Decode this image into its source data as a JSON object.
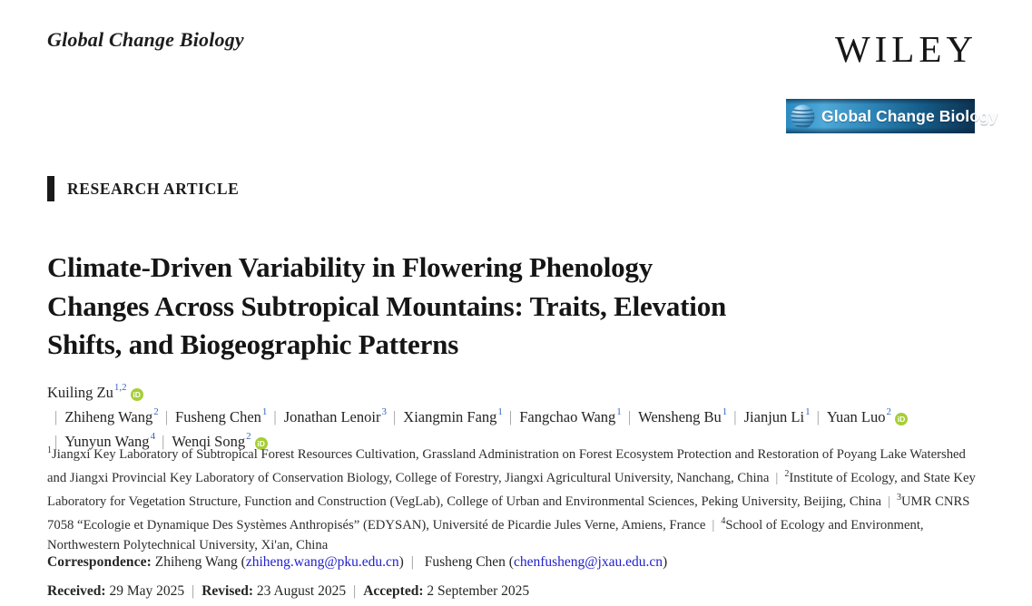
{
  "separator": "|",
  "header": {
    "journal_name": "Global Change Biology",
    "publisher": "WILEY",
    "banner": {
      "label": "Global Change Biology",
      "icon": "globe-icon",
      "gradient_left": "#2b8ac1",
      "gradient_right": "#0d3150",
      "text_color": "#ffffff"
    }
  },
  "article": {
    "kicker": "RESEARCH ARTICLE",
    "title": "Climate-Driven Variability in Flowering Phenology Changes Across Subtropical Mountains: Traits, Elevation Shifts, and Biogeographic Patterns",
    "title_lines": [
      "Climate-Driven Variability in Flowering Phenology",
      "Changes Across Subtropical Mountains: Traits, Elevation",
      "Shifts, and Biogeographic Patterns"
    ]
  },
  "authors": {
    "orcid_icon_color": "#A6CE39",
    "superscript_color": "#3565c0",
    "list": [
      {
        "name": "Kuiling Zu",
        "sup": "1,2",
        "orcid": true
      },
      {
        "name": "Zhiheng Wang",
        "sup": "2",
        "orcid": false
      },
      {
        "name": "Fusheng Chen",
        "sup": "1",
        "orcid": false
      },
      {
        "name": "Jonathan Lenoir",
        "sup": "3",
        "orcid": false
      },
      {
        "name": "Xiangmin Fang",
        "sup": "1",
        "orcid": false
      },
      {
        "name": "Fangchao Wang",
        "sup": "1",
        "orcid": false
      },
      {
        "name": "Wensheng Bu",
        "sup": "1",
        "orcid": false
      },
      {
        "name": "Jianjun Li",
        "sup": "1",
        "orcid": false
      },
      {
        "name": "Yuan Luo",
        "sup": "2",
        "orcid": true
      },
      {
        "name": "Yunyun Wang",
        "sup": "4",
        "orcid": false
      },
      {
        "name": "Wenqi Song",
        "sup": "2",
        "orcid": true
      }
    ]
  },
  "affiliations": [
    {
      "sup": "1",
      "text": "Jiangxi Key Laboratory of Subtropical Forest Resources Cultivation, Grassland Administration on Forest Ecosystem Protection and Restoration of Poyang Lake Watershed and Jiangxi Provincial Key Laboratory of Conservation Biology, College of Forestry, Jiangxi Agricultural University, Nanchang, China"
    },
    {
      "sup": "2",
      "text": "Institute of Ecology, and State Key Laboratory for Vegetation Structure, Function and Construction (VegLab), College of Urban and Environmental Sciences, Peking University, Beijing, China"
    },
    {
      "sup": "3",
      "text": "UMR CNRS 7058 “Ecologie et Dynamique Des Systèmes Anthropisés” (EDYSAN), Université de Picardie Jules Verne, Amiens, France"
    },
    {
      "sup": "4",
      "text": "School of Ecology and Environment, Northwestern Polytechnical University, Xi'an, China"
    }
  ],
  "correspondence": {
    "label": "Correspondence:",
    "contacts": [
      {
        "name": "Zhiheng Wang",
        "email": "zhiheng.wang@pku.edu.cn"
      },
      {
        "name": "Fusheng Chen",
        "email": "chenfusheng@jxau.edu.cn"
      }
    ],
    "email_color": "#2121cc"
  },
  "dates": [
    {
      "label": "Received:",
      "value": "29 May 2025"
    },
    {
      "label": "Revised:",
      "value": "23 August 2025"
    },
    {
      "label": "Accepted:",
      "value": "2 September 2025"
    }
  ]
}
